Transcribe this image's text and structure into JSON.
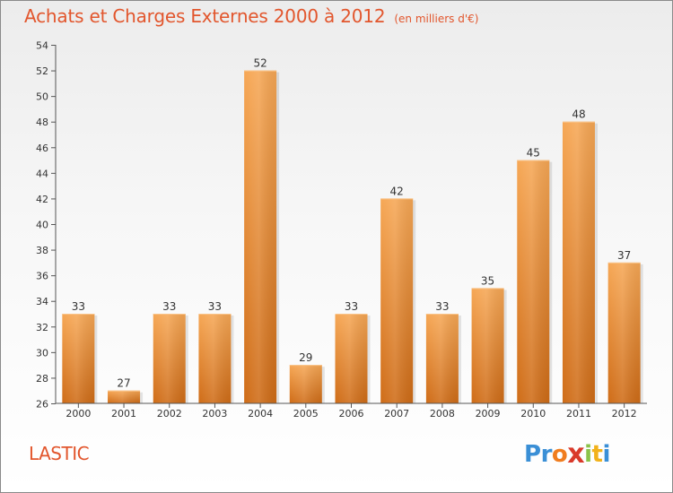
{
  "header": {
    "title": "Achats et Charges Externes 2000 à 2012",
    "subtitle": "(en milliers d'€)"
  },
  "footer": {
    "commune": "LASTIC",
    "brand": {
      "letters": [
        "P",
        "r",
        "o",
        "x",
        "i",
        "t",
        "i"
      ],
      "colors": [
        "#3a8fd6",
        "#3a8fd6",
        "#f07d1f",
        "#d93a2b",
        "#8bc34a",
        "#f2b21b",
        "#3a8fd6"
      ]
    }
  },
  "colors": {
    "title": "#e2562d",
    "bar_light": "#f6a755",
    "bar_dark": "#cf6c17",
    "axis": "#555555"
  },
  "chart_data": {
    "type": "bar",
    "title": "Achats et Charges Externes 2000 à 2012",
    "subtitle": "(en milliers d'€)",
    "categories": [
      "2000",
      "2001",
      "2002",
      "2003",
      "2004",
      "2005",
      "2006",
      "2007",
      "2008",
      "2009",
      "2010",
      "2011",
      "2012"
    ],
    "values": [
      33,
      27,
      33,
      33,
      52,
      29,
      33,
      42,
      33,
      35,
      45,
      48,
      37
    ],
    "data_labels": [
      "33",
      "27",
      "33",
      "33",
      "52",
      "29",
      "33",
      "42",
      "33",
      "35",
      "45",
      "48",
      "37"
    ],
    "yticks": [
      "26",
      "28",
      "30",
      "32",
      "34",
      "36",
      "38",
      "40",
      "42",
      "44",
      "46",
      "48",
      "50",
      "52",
      "54"
    ],
    "ylim": [
      26,
      54
    ],
    "xlabel": "",
    "ylabel": "",
    "grid": false,
    "legend": "none"
  }
}
